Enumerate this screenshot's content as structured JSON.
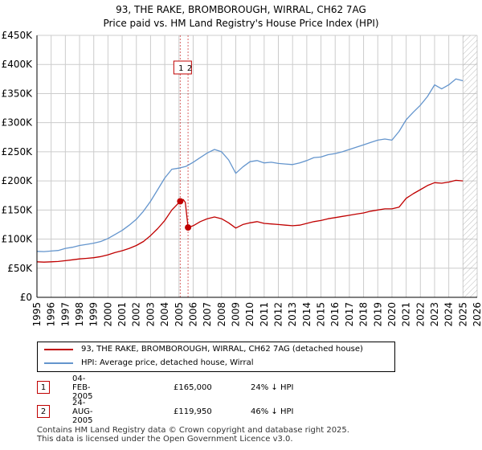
{
  "title_line1": "93, THE RAKE, BROMBOROUGH, WIRRAL, CH62 7AG",
  "title_line2": "Price paid vs. HM Land Registry's House Price Index (HPI)",
  "chart_data": {
    "type": "line",
    "title": "93, THE RAKE, BROMBOROUGH, WIRRAL, CH62 7AG",
    "subtitle": "Price paid vs. HM Land Registry's House Price Index (HPI)",
    "xlabel": "",
    "ylabel": "",
    "xlim": [
      1995,
      2026
    ],
    "ylim": [
      0,
      450000
    ],
    "x_ticks": [
      1995,
      1996,
      1997,
      1998,
      1999,
      2000,
      2001,
      2002,
      2003,
      2004,
      2005,
      2006,
      2007,
      2008,
      2009,
      2010,
      2011,
      2012,
      2013,
      2014,
      2015,
      2016,
      2017,
      2018,
      2019,
      2020,
      2021,
      2022,
      2023,
      2024,
      2025,
      2026
    ],
    "y_ticks": [
      {
        "value": 0,
        "label": "£0"
      },
      {
        "value": 50000,
        "label": "£50K"
      },
      {
        "value": 100000,
        "label": "£100K"
      },
      {
        "value": 150000,
        "label": "£150K"
      },
      {
        "value": 200000,
        "label": "£200K"
      },
      {
        "value": 250000,
        "label": "£250K"
      },
      {
        "value": 300000,
        "label": "£300K"
      },
      {
        "value": 350000,
        "label": "£350K"
      },
      {
        "value": 400000,
        "label": "£400K"
      },
      {
        "value": 450000,
        "label": "£450K"
      }
    ],
    "grid": true,
    "forecast_start": 2025.0,
    "series": [
      {
        "name": "93, THE RAKE, BROMBOROUGH, WIRRAL, CH62 7AG (detached house)",
        "color": "#c00000",
        "x": [
          1995.0,
          1995.5,
          1996.0,
          1996.5,
          1997.0,
          1997.5,
          1998.0,
          1998.5,
          1999.0,
          1999.5,
          2000.0,
          2000.5,
          2001.0,
          2001.5,
          2002.0,
          2002.5,
          2003.0,
          2003.5,
          2004.0,
          2004.5,
          2005.09,
          2005.3,
          2005.45,
          2005.64,
          2006.0,
          2006.5,
          2007.0,
          2007.5,
          2008.0,
          2008.5,
          2009.0,
          2009.5,
          2010.0,
          2010.5,
          2011.0,
          2011.5,
          2012.0,
          2012.5,
          2013.0,
          2013.5,
          2014.0,
          2014.5,
          2015.0,
          2015.5,
          2016.0,
          2016.5,
          2017.0,
          2017.5,
          2018.0,
          2018.5,
          2019.0,
          2019.5,
          2020.0,
          2020.5,
          2021.0,
          2021.5,
          2022.0,
          2022.5,
          2023.0,
          2023.5,
          2024.0,
          2024.5,
          2025.0
        ],
        "y": [
          61000,
          60500,
          61000,
          61500,
          63000,
          64500,
          66000,
          67000,
          68000,
          70000,
          73000,
          77000,
          80000,
          84000,
          89000,
          96000,
          106000,
          118000,
          132000,
          150000,
          165000,
          168000,
          163000,
          119950,
          123000,
          130000,
          135000,
          138000,
          135000,
          128000,
          119000,
          125000,
          128000,
          130000,
          127000,
          126000,
          125000,
          124000,
          123000,
          124000,
          127000,
          130000,
          132000,
          135000,
          137000,
          139000,
          141000,
          143000,
          145000,
          148000,
          150000,
          152000,
          152000,
          155000,
          170000,
          178000,
          185000,
          192000,
          197000,
          196000,
          198000,
          201000,
          200000
        ]
      },
      {
        "name": "HPI: Average price, detached house, Wirral",
        "color": "#6495cd",
        "x": [
          1995.0,
          1995.5,
          1996.0,
          1996.5,
          1997.0,
          1997.5,
          1998.0,
          1998.5,
          1999.0,
          1999.5,
          2000.0,
          2000.5,
          2001.0,
          2001.5,
          2002.0,
          2002.5,
          2003.0,
          2003.5,
          2004.0,
          2004.5,
          2005.0,
          2005.5,
          2006.0,
          2006.5,
          2007.0,
          2007.5,
          2008.0,
          2008.5,
          2009.0,
          2009.5,
          2010.0,
          2010.5,
          2011.0,
          2011.5,
          2012.0,
          2012.5,
          2013.0,
          2013.5,
          2014.0,
          2014.5,
          2015.0,
          2015.5,
          2016.0,
          2016.5,
          2017.0,
          2017.5,
          2018.0,
          2018.5,
          2019.0,
          2019.5,
          2020.0,
          2020.5,
          2021.0,
          2021.5,
          2022.0,
          2022.5,
          2023.0,
          2023.5,
          2024.0,
          2024.5,
          2025.0
        ],
        "y": [
          79000,
          78500,
          79500,
          80500,
          84000,
          86000,
          89000,
          91000,
          93000,
          96000,
          101000,
          108000,
          115000,
          124000,
          134000,
          148000,
          165000,
          185000,
          205000,
          220000,
          222000,
          225000,
          232000,
          240000,
          248000,
          254000,
          250000,
          236000,
          213000,
          224000,
          233000,
          235000,
          231000,
          232000,
          230000,
          229000,
          228000,
          231000,
          235000,
          240000,
          241000,
          245000,
          247000,
          250000,
          254000,
          258000,
          262000,
          266000,
          270000,
          272000,
          270000,
          285000,
          305000,
          318000,
          330000,
          345000,
          365000,
          358000,
          365000,
          375000,
          372000
        ]
      }
    ],
    "sales": [
      {
        "label": "1",
        "x": 2005.09,
        "price": 165000
      },
      {
        "label": "2",
        "x": 2005.64,
        "price": 119950
      }
    ]
  },
  "legend": {
    "property_label": "93, THE RAKE, BROMBOROUGH, WIRRAL, CH62 7AG (detached house)",
    "hpi_label": "HPI: Average price, detached house, Wirral"
  },
  "transactions": [
    {
      "num": "1",
      "date": "04-FEB-2005",
      "price": "£165,000",
      "hpi": "24% ↓ HPI"
    },
    {
      "num": "2",
      "date": "24-AUG-2005",
      "price": "£119,950",
      "hpi": "46% ↓ HPI"
    }
  ],
  "footer": {
    "line1": "Contains HM Land Registry data © Crown copyright and database right 2025.",
    "line2": "This data is licensed under the Open Government Licence v3.0."
  }
}
